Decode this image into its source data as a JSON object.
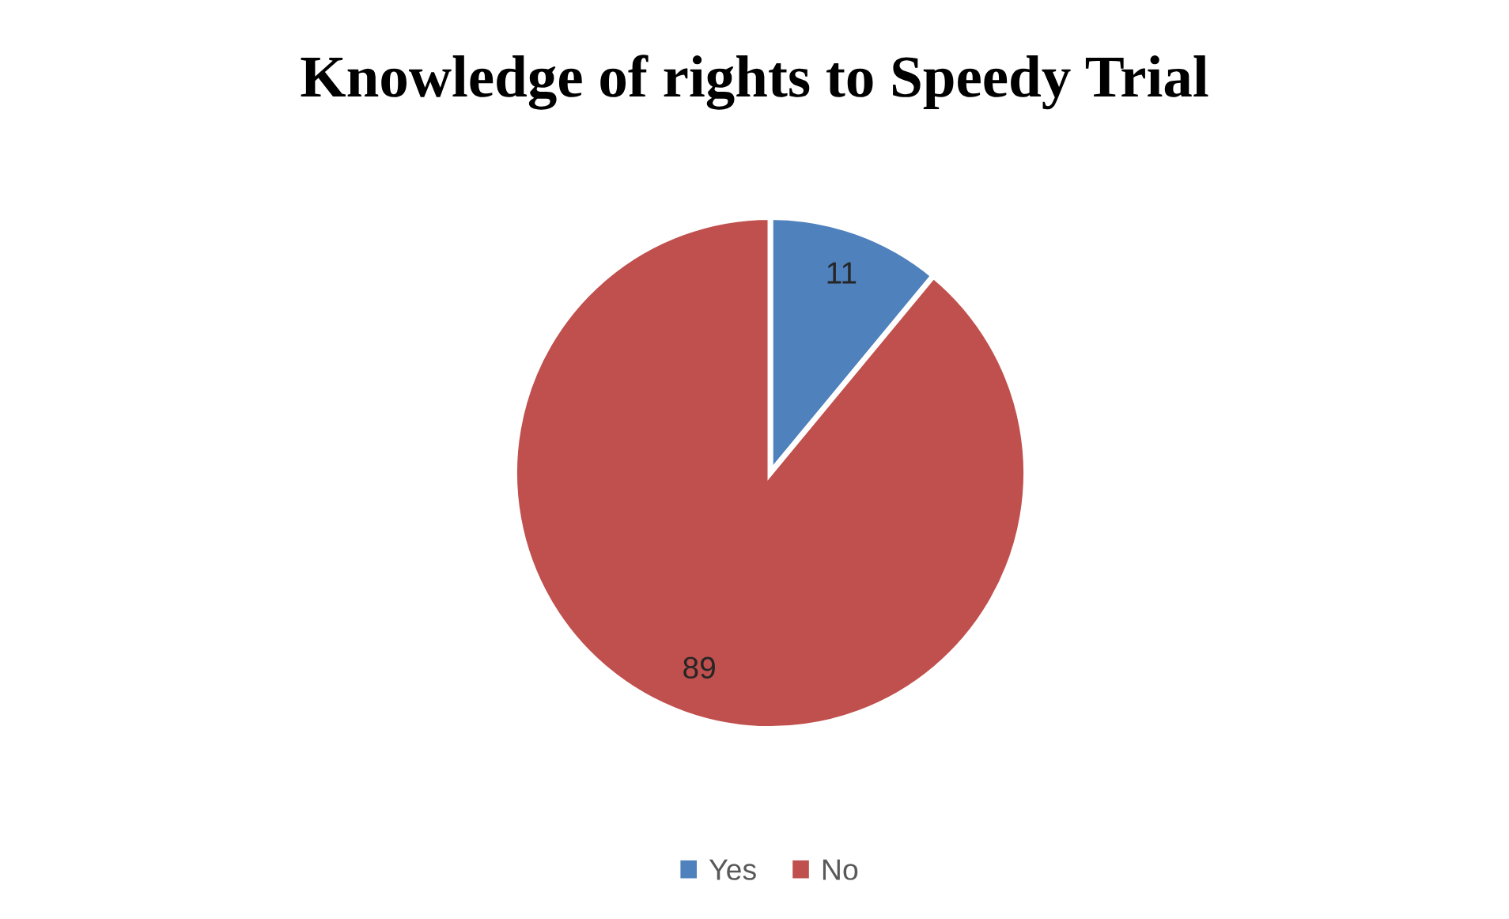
{
  "chart_data": {
    "type": "pie",
    "title": "Knowledge of rights to Speedy Trial",
    "categories": [
      "Yes",
      "No"
    ],
    "values": [
      11,
      89
    ],
    "colors": [
      "#4f81bd",
      "#c0504d"
    ],
    "data_labels": true,
    "legend": "bottom"
  }
}
